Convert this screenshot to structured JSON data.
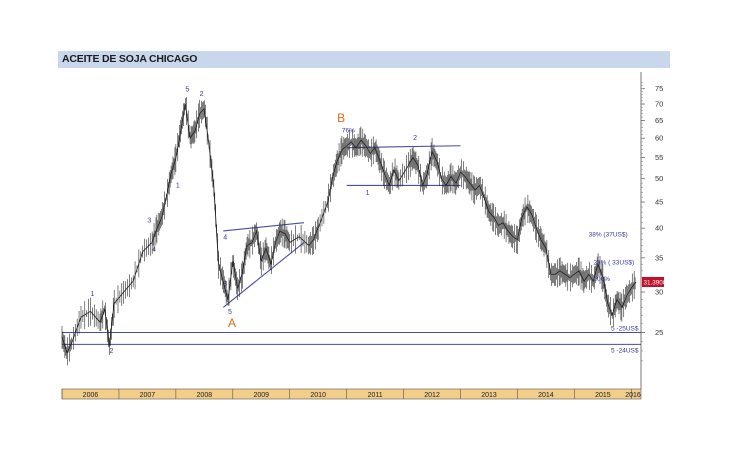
{
  "title": "ACEITE DE SOJA CHICAGO",
  "chart_data": {
    "type": "line",
    "title": "ACEITE DE SOJA CHICAGO",
    "y_scale": "log",
    "ylim": [
      20,
      78
    ],
    "x_range": [
      "2006-01",
      "2016-03"
    ],
    "y_ticks": [
      "75",
      "70",
      "65",
      "60",
      "55",
      "50",
      "45",
      "40",
      "35",
      "30",
      "25"
    ],
    "x_ticks": [
      "2006",
      "2007",
      "2008",
      "2009",
      "2010",
      "2011",
      "2012",
      "2013",
      "2014",
      "2015",
      "2016"
    ],
    "last_price_label": "31.3900",
    "last_price": 31.39,
    "series": [
      {
        "points": [
          [
            "2006-01",
            24.5
          ],
          [
            "2006-02",
            22.8
          ],
          [
            "2006-03",
            23.8
          ],
          [
            "2006-05",
            26.8
          ],
          [
            "2006-07",
            27.5
          ],
          [
            "2006-09",
            26.2
          ],
          [
            "2006-10",
            27.8
          ],
          [
            "2006-11",
            23.5
          ],
          [
            "2006-12",
            28.5
          ],
          [
            "2007-02",
            30.0
          ],
          [
            "2007-04",
            31.5
          ],
          [
            "2007-06",
            36.0
          ],
          [
            "2007-08",
            37.5
          ],
          [
            "2007-09",
            40.0
          ],
          [
            "2007-10",
            42.0
          ],
          [
            "2007-11",
            46.0
          ],
          [
            "2007-12",
            51.0
          ],
          [
            "2008-01",
            55.0
          ],
          [
            "2008-02",
            62.0
          ],
          [
            "2008-03",
            70.0
          ],
          [
            "2008-04",
            60.0
          ],
          [
            "2008-05",
            62.0
          ],
          [
            "2008-06",
            67.0
          ],
          [
            "2008-07",
            68.5
          ],
          [
            "2008-08",
            58.0
          ],
          [
            "2008-09",
            48.0
          ],
          [
            "2008-10",
            34.0
          ],
          [
            "2008-11",
            31.5
          ],
          [
            "2008-12",
            29.0
          ],
          [
            "2009-01",
            34.5
          ],
          [
            "2009-02",
            30.5
          ],
          [
            "2009-03",
            32.5
          ],
          [
            "2009-04",
            37.0
          ],
          [
            "2009-05",
            37.5
          ],
          [
            "2009-06",
            39.5
          ],
          [
            "2009-07",
            34.5
          ],
          [
            "2009-08",
            36.5
          ],
          [
            "2009-09",
            34.0
          ],
          [
            "2009-10",
            37.5
          ],
          [
            "2009-11",
            39.5
          ],
          [
            "2009-12",
            39.0
          ],
          [
            "2010-01",
            37.5
          ],
          [
            "2010-03",
            38.5
          ],
          [
            "2010-05",
            37.0
          ],
          [
            "2010-06",
            38.0
          ],
          [
            "2010-07",
            40.0
          ],
          [
            "2010-09",
            45.0
          ],
          [
            "2010-10",
            50.0
          ],
          [
            "2010-11",
            54.0
          ],
          [
            "2010-12",
            57.0
          ],
          [
            "2011-01",
            58.0
          ],
          [
            "2011-02",
            59.0
          ],
          [
            "2011-03",
            57.5
          ],
          [
            "2011-04",
            59.5
          ],
          [
            "2011-05",
            58.0
          ],
          [
            "2011-06",
            56.0
          ],
          [
            "2011-07",
            57.5
          ],
          [
            "2011-08",
            54.0
          ],
          [
            "2011-09",
            51.0
          ],
          [
            "2011-10",
            48.5
          ],
          [
            "2011-11",
            52.0
          ],
          [
            "2011-12",
            49.5
          ],
          [
            "2012-02",
            53.0
          ],
          [
            "2012-03",
            55.0
          ],
          [
            "2012-04",
            53.0
          ],
          [
            "2012-05",
            48.5
          ],
          [
            "2012-06",
            51.0
          ],
          [
            "2012-07",
            56.5
          ],
          [
            "2012-08",
            54.0
          ],
          [
            "2012-09",
            50.0
          ],
          [
            "2012-10",
            48.5
          ],
          [
            "2012-11",
            50.5
          ],
          [
            "2012-12",
            49.0
          ],
          [
            "2013-01",
            51.5
          ],
          [
            "2013-02",
            50.5
          ],
          [
            "2013-03",
            49.0
          ],
          [
            "2013-04",
            47.5
          ],
          [
            "2013-05",
            48.5
          ],
          [
            "2013-06",
            46.0
          ],
          [
            "2013-07",
            43.0
          ],
          [
            "2013-08",
            42.0
          ],
          [
            "2013-09",
            40.5
          ],
          [
            "2013-10",
            41.0
          ],
          [
            "2013-11",
            39.5
          ],
          [
            "2013-12",
            38.5
          ],
          [
            "2014-01",
            38.0
          ],
          [
            "2014-02",
            42.0
          ],
          [
            "2014-03",
            44.0
          ],
          [
            "2014-04",
            42.5
          ],
          [
            "2014-05",
            40.0
          ],
          [
            "2014-06",
            38.0
          ],
          [
            "2014-07",
            36.5
          ],
          [
            "2014-08",
            32.5
          ],
          [
            "2014-09",
            32.5
          ],
          [
            "2014-10",
            33.0
          ],
          [
            "2014-11",
            32.5
          ],
          [
            "2014-12",
            32.0
          ],
          [
            "2015-01",
            32.5
          ],
          [
            "2015-02",
            33.0
          ],
          [
            "2015-03",
            31.5
          ],
          [
            "2015-04",
            32.5
          ],
          [
            "2015-05",
            31.5
          ],
          [
            "2015-06",
            34.0
          ],
          [
            "2015-07",
            32.0
          ],
          [
            "2015-08",
            28.5
          ],
          [
            "2015-09",
            27.0
          ],
          [
            "2015-10",
            29.0
          ],
          [
            "2015-11",
            28.0
          ],
          [
            "2015-12",
            29.5
          ],
          [
            "2016-01",
            30.5
          ],
          [
            "2016-02",
            31.39
          ]
        ]
      }
    ],
    "horizontal_lines": [
      {
        "y": 25.0,
        "label": "5 -25US$"
      },
      {
        "y": 23.7,
        "label": "5 -24US$"
      }
    ],
    "trendlines": [
      {
        "from": [
          "2008-11",
          39.5
        ],
        "to": [
          "2010-04",
          41.0
        ]
      },
      {
        "from": [
          "2008-11",
          28.0
        ],
        "to": [
          "2010-04",
          37.5
        ]
      },
      {
        "from": [
          "2011-01",
          57.5
        ],
        "to": [
          "2013-01",
          58.0
        ]
      },
      {
        "from": [
          "2011-01",
          48.5
        ],
        "to": [
          "2013-01",
          48.5
        ]
      }
    ],
    "annotations": [
      {
        "text": "5",
        "at": [
          "2008-03",
          74.0
        ]
      },
      {
        "text": "2",
        "at": [
          "2008-06",
          72.5
        ]
      },
      {
        "text": "1",
        "at": [
          "2008-01",
          48.0
        ]
      },
      {
        "text": "3",
        "at": [
          "2007-07",
          41.0
        ]
      },
      {
        "text": "4",
        "at": [
          "2007-08",
          36.0
        ]
      },
      {
        "text": "1",
        "at": [
          "2006-07",
          29.5
        ]
      },
      {
        "text": "2",
        "at": [
          "2006-11",
          22.8
        ]
      },
      {
        "text": "4",
        "at": [
          "2008-11",
          38.0
        ]
      },
      {
        "text": "3",
        "at": [
          "2008-11",
          30.8
        ]
      },
      {
        "text": "5",
        "at": [
          "2008-12",
          27.2
        ]
      },
      {
        "text": "76%",
        "at": [
          "2010-12",
          61.5
        ]
      },
      {
        "text": "1",
        "at": [
          "2011-05",
          46.5
        ]
      },
      {
        "text": "2",
        "at": [
          "2012-03",
          59.5
        ]
      },
      {
        "text": "38% (37US$)",
        "at": [
          "2015-04",
          38.5
        ]
      },
      {
        "text": "23% ( 33US$)",
        "at": [
          "2015-05",
          34.0
        ]
      },
      {
        "text": "100%",
        "at": [
          "2015-05",
          31.5
        ]
      },
      {
        "text": "A",
        "at": [
          "2008-12",
          25.6
        ]
      },
      {
        "text": "B",
        "at": [
          "2010-11",
          64.5
        ]
      }
    ]
  }
}
